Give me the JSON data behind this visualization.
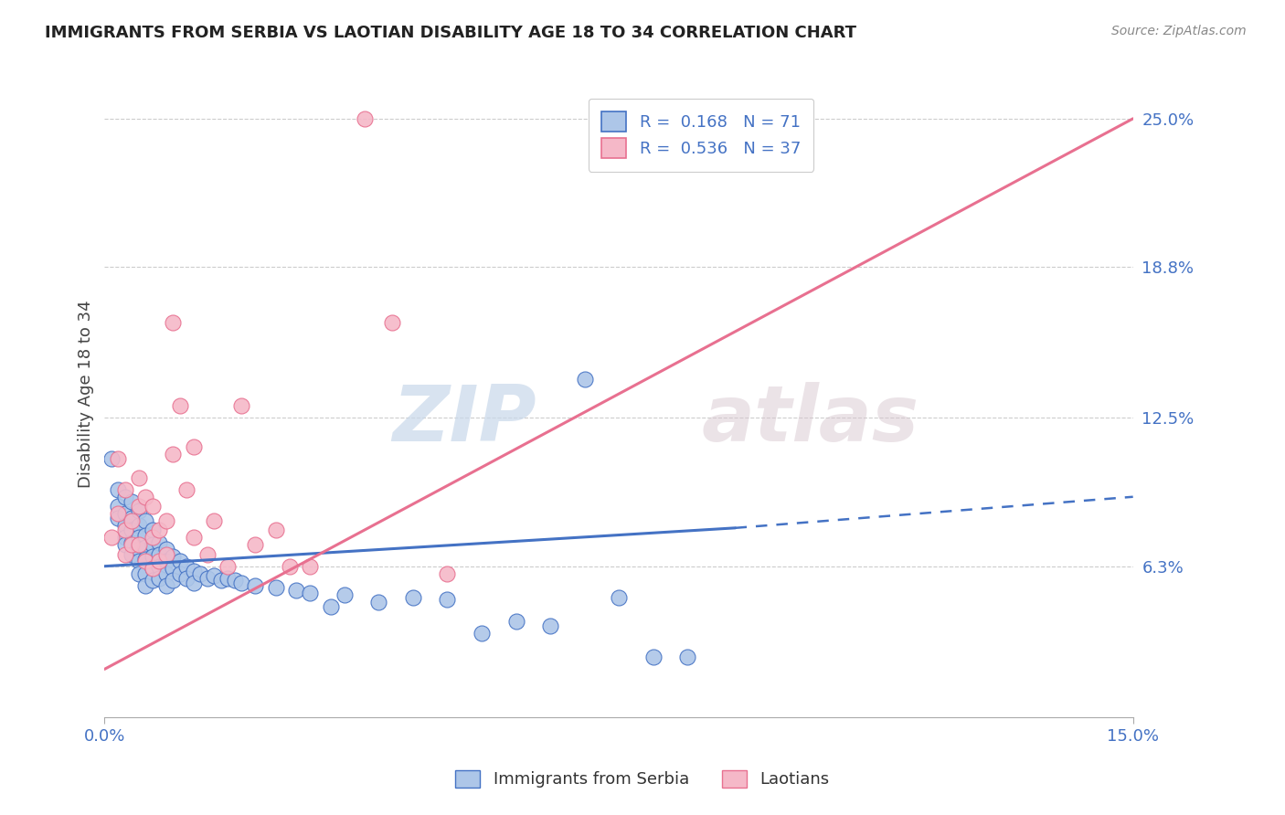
{
  "title": "IMMIGRANTS FROM SERBIA VS LAOTIAN DISABILITY AGE 18 TO 34 CORRELATION CHART",
  "source": "Source: ZipAtlas.com",
  "ylabel": "Disability Age 18 to 34",
  "xlim": [
    0.0,
    0.15
  ],
  "ylim": [
    0.0,
    0.27
  ],
  "y_tick_vals": [
    0.063,
    0.125,
    0.188,
    0.25
  ],
  "y_tick_labels": [
    "6.3%",
    "12.5%",
    "18.8%",
    "25.0%"
  ],
  "x_tick_vals": [
    0.0,
    0.15
  ],
  "x_tick_labels": [
    "0.0%",
    "15.0%"
  ],
  "serbia_color": "#adc6e8",
  "laotian_color": "#f5b8c8",
  "serbia_line_color": "#4472c4",
  "laotian_line_color": "#e87090",
  "r_serbia": "0.168",
  "n_serbia": "71",
  "r_laotian": "0.536",
  "n_laotian": "37",
  "legend_label_serbia": "Immigrants from Serbia",
  "legend_label_laotian": "Laotians",
  "watermark_zip": "ZIP",
  "watermark_atlas": "atlas",
  "background_color": "#ffffff",
  "grid_color": "#cccccc",
  "serbia_line_x0": 0.0,
  "serbia_line_y0": 0.063,
  "serbia_line_x1": 0.092,
  "serbia_line_y1": 0.079,
  "serbia_line_x2": 0.15,
  "serbia_line_y2": 0.092,
  "laotian_line_x0": 0.0,
  "laotian_line_y0": 0.02,
  "laotian_line_x1": 0.15,
  "laotian_line_y1": 0.25,
  "serbia_scatter": [
    [
      0.001,
      0.108
    ],
    [
      0.002,
      0.095
    ],
    [
      0.002,
      0.088
    ],
    [
      0.002,
      0.083
    ],
    [
      0.003,
      0.092
    ],
    [
      0.003,
      0.085
    ],
    [
      0.003,
      0.08
    ],
    [
      0.003,
      0.075
    ],
    [
      0.003,
      0.072
    ],
    [
      0.004,
      0.09
    ],
    [
      0.004,
      0.083
    ],
    [
      0.004,
      0.078
    ],
    [
      0.004,
      0.073
    ],
    [
      0.004,
      0.068
    ],
    [
      0.005,
      0.086
    ],
    [
      0.005,
      0.08
    ],
    [
      0.005,
      0.075
    ],
    [
      0.005,
      0.07
    ],
    [
      0.005,
      0.065
    ],
    [
      0.005,
      0.06
    ],
    [
      0.006,
      0.082
    ],
    [
      0.006,
      0.076
    ],
    [
      0.006,
      0.071
    ],
    [
      0.006,
      0.066
    ],
    [
      0.006,
      0.06
    ],
    [
      0.006,
      0.055
    ],
    [
      0.007,
      0.078
    ],
    [
      0.007,
      0.072
    ],
    [
      0.007,
      0.067
    ],
    [
      0.007,
      0.062
    ],
    [
      0.007,
      0.057
    ],
    [
      0.008,
      0.073
    ],
    [
      0.008,
      0.068
    ],
    [
      0.008,
      0.063
    ],
    [
      0.008,
      0.058
    ],
    [
      0.009,
      0.07
    ],
    [
      0.009,
      0.065
    ],
    [
      0.009,
      0.06
    ],
    [
      0.009,
      0.055
    ],
    [
      0.01,
      0.067
    ],
    [
      0.01,
      0.062
    ],
    [
      0.01,
      0.057
    ],
    [
      0.011,
      0.065
    ],
    [
      0.011,
      0.06
    ],
    [
      0.012,
      0.063
    ],
    [
      0.012,
      0.058
    ],
    [
      0.013,
      0.061
    ],
    [
      0.013,
      0.056
    ],
    [
      0.014,
      0.06
    ],
    [
      0.015,
      0.058
    ],
    [
      0.016,
      0.059
    ],
    [
      0.017,
      0.057
    ],
    [
      0.018,
      0.058
    ],
    [
      0.019,
      0.057
    ],
    [
      0.02,
      0.056
    ],
    [
      0.022,
      0.055
    ],
    [
      0.025,
      0.054
    ],
    [
      0.028,
      0.053
    ],
    [
      0.03,
      0.052
    ],
    [
      0.033,
      0.046
    ],
    [
      0.035,
      0.051
    ],
    [
      0.04,
      0.048
    ],
    [
      0.045,
      0.05
    ],
    [
      0.05,
      0.049
    ],
    [
      0.055,
      0.035
    ],
    [
      0.06,
      0.04
    ],
    [
      0.065,
      0.038
    ],
    [
      0.07,
      0.141
    ],
    [
      0.075,
      0.05
    ],
    [
      0.08,
      0.025
    ],
    [
      0.085,
      0.025
    ]
  ],
  "laotian_scatter": [
    [
      0.001,
      0.075
    ],
    [
      0.002,
      0.108
    ],
    [
      0.002,
      0.085
    ],
    [
      0.003,
      0.095
    ],
    [
      0.003,
      0.078
    ],
    [
      0.003,
      0.068
    ],
    [
      0.004,
      0.082
    ],
    [
      0.004,
      0.072
    ],
    [
      0.005,
      0.1
    ],
    [
      0.005,
      0.088
    ],
    [
      0.005,
      0.072
    ],
    [
      0.006,
      0.092
    ],
    [
      0.006,
      0.065
    ],
    [
      0.007,
      0.088
    ],
    [
      0.007,
      0.075
    ],
    [
      0.007,
      0.062
    ],
    [
      0.008,
      0.078
    ],
    [
      0.008,
      0.065
    ],
    [
      0.009,
      0.082
    ],
    [
      0.009,
      0.068
    ],
    [
      0.01,
      0.165
    ],
    [
      0.01,
      0.11
    ],
    [
      0.011,
      0.13
    ],
    [
      0.012,
      0.095
    ],
    [
      0.013,
      0.113
    ],
    [
      0.013,
      0.075
    ],
    [
      0.015,
      0.068
    ],
    [
      0.016,
      0.082
    ],
    [
      0.018,
      0.063
    ],
    [
      0.02,
      0.13
    ],
    [
      0.022,
      0.072
    ],
    [
      0.025,
      0.078
    ],
    [
      0.027,
      0.063
    ],
    [
      0.03,
      0.063
    ],
    [
      0.038,
      0.25
    ],
    [
      0.042,
      0.165
    ],
    [
      0.05,
      0.06
    ]
  ]
}
